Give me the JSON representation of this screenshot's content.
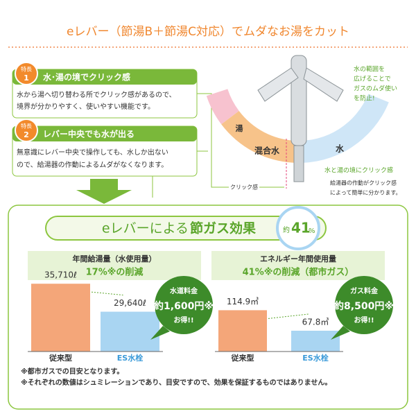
{
  "header": {
    "title": "eレバー（節湯B＋節湯C対応）でムダなお湯をカット"
  },
  "features": [
    {
      "badge": "特長",
      "number": "1",
      "title": "水･湯の境でクリック感",
      "text": [
        "水から湯へ切り替わる所でクリック感があるので、",
        "境界が分かりやすく、使いやすい機能です。"
      ]
    },
    {
      "badge": "特長",
      "number": "2",
      "title": "レバー中央でも水が出る",
      "text": [
        "無意識にレバー中央で操作しても、水しか出ない",
        "ので、給湯器の作動によるムダがなくなります。"
      ]
    }
  ],
  "diagram": {
    "hot": "湯",
    "mixed": "混合水",
    "cold": "水",
    "click": "クリック感",
    "note": [
      "水の範囲を",
      "広げることで",
      "ガスのムダ使い",
      "を防止!"
    ],
    "click_note_title": "水と湯の境にクリック感",
    "click_note": [
      "給湯器の作動がクリック感",
      "によって簡単に分かります。"
    ]
  },
  "banner": {
    "title_prefix": "eレバーによる",
    "title_emph": "節ガス効果",
    "badge_prefix": "約",
    "badge_value": 41,
    "badge_unit": "%"
  },
  "chart_data": [
    {
      "type": "bar",
      "title": "年間給湯量（水使用量）",
      "subtitle": "17%※の削減",
      "categories": [
        "従来型",
        "ES水栓"
      ],
      "values": [
        35710,
        29640
      ],
      "value_labels": [
        "35,710ℓ",
        "29,640ℓ"
      ],
      "colors": [
        "#f4a679",
        "#a9d5f2"
      ],
      "ylim": [
        21000,
        38000
      ],
      "callout": [
        "水道料金",
        "約1,600円※",
        "お得!!"
      ]
    },
    {
      "type": "bar",
      "title": "エネルギー年間使用量",
      "subtitle": "41%※の削減（都市ガス）",
      "categories": [
        "従来型",
        "ES水栓"
      ],
      "values": [
        114.9,
        67.8
      ],
      "value_labels": [
        "114.9㎥",
        "67.8㎥"
      ],
      "colors": [
        "#f4a679",
        "#a9d5f2"
      ],
      "ylim": [
        20,
        200
      ],
      "callout": [
        "ガス料金",
        "約8,500円※",
        "お得!!"
      ]
    }
  ],
  "footnotes": [
    "※都市ガスでの目安となります。",
    "※それぞれの数値はシュミレーションであり、目安ですので、効果を保証するものではありません。"
  ]
}
